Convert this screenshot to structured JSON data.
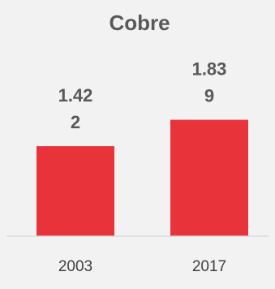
{
  "chart_data": {
    "type": "bar",
    "title": "Cobre",
    "categories": [
      "2003",
      "2017"
    ],
    "values": [
      1.422,
      1.839
    ],
    "data_labels": [
      [
        "1.42",
        "2"
      ],
      [
        "1.83",
        "9"
      ]
    ],
    "xlabel": "",
    "ylabel": "",
    "ylim": [
      0,
      2
    ],
    "grid": false,
    "legend": "none",
    "bar_color": "#e8333a",
    "axis_color": "#d9d9d9",
    "background": "#f2f2f2"
  }
}
